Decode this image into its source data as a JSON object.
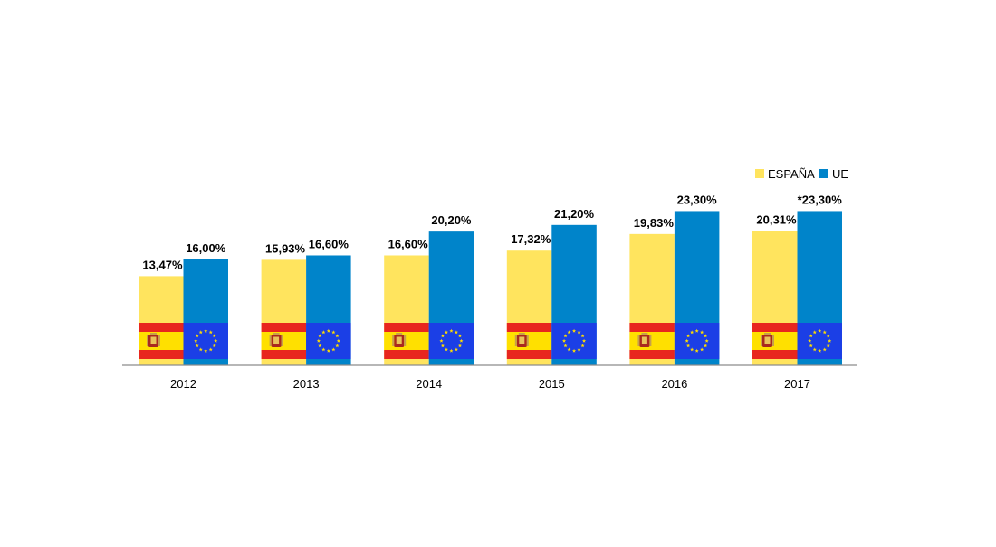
{
  "chart_data": {
    "type": "bar",
    "categories": [
      "2012",
      "2013",
      "2014",
      "2015",
      "2016",
      "2017"
    ],
    "series": [
      {
        "name": "ESPAÑA",
        "color": "#FFE45E",
        "icon": "spain-flag-icon",
        "values": [
          13.47,
          15.93,
          16.6,
          17.32,
          19.83,
          20.31
        ],
        "labels": [
          "13,47%",
          "15,93%",
          "16,60%",
          "17,32%",
          "19,83%",
          "20,31%"
        ]
      },
      {
        "name": "UE",
        "color": "#0084CA",
        "icon": "eu-flag-icon",
        "values": [
          16.0,
          16.6,
          20.2,
          21.2,
          23.3,
          23.3
        ],
        "labels": [
          "16,00%",
          "16,60%",
          "20,20%",
          "21,20%",
          "23,30%",
          "*23,30%"
        ]
      }
    ],
    "ylim": [
      0,
      30
    ],
    "grid": false,
    "legend": "top-right",
    "xlabel": "",
    "ylabel": ""
  }
}
